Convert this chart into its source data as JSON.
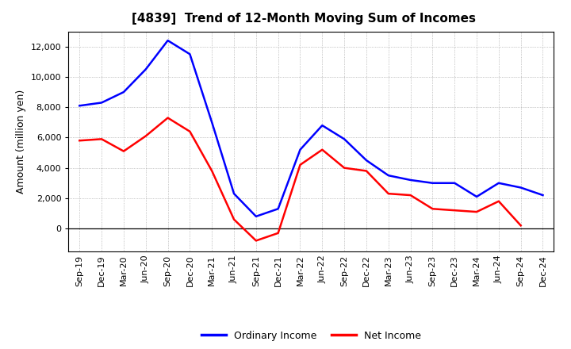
{
  "title": "[4839]  Trend of 12-Month Moving Sum of Incomes",
  "ylabel": "Amount (million yen)",
  "x_labels": [
    "Sep-19",
    "Dec-19",
    "Mar-20",
    "Jun-20",
    "Sep-20",
    "Dec-20",
    "Mar-21",
    "Jun-21",
    "Sep-21",
    "Dec-21",
    "Mar-22",
    "Jun-22",
    "Sep-22",
    "Dec-22",
    "Mar-23",
    "Jun-23",
    "Sep-23",
    "Dec-23",
    "Mar-24",
    "Jun-24",
    "Sep-24",
    "Dec-24"
  ],
  "ordinary_income": [
    8100,
    8300,
    9000,
    10500,
    12400,
    11500,
    7000,
    2300,
    800,
    1300,
    5200,
    6800,
    5900,
    4500,
    3500,
    3200,
    3000,
    3000,
    2100,
    3000,
    2700,
    2200
  ],
  "net_income": [
    5800,
    5900,
    5100,
    6100,
    7300,
    6400,
    3800,
    600,
    -800,
    -300,
    4200,
    5200,
    4000,
    3800,
    2300,
    2200,
    1300,
    1200,
    1100,
    1800,
    200,
    null
  ],
  "ordinary_color": "#0000ff",
  "net_color": "#ff0000",
  "background_color": "#ffffff",
  "plot_bg_color": "#ffffff",
  "grid_color": "#999999",
  "ylim": [
    -1500,
    13000
  ],
  "yticks": [
    0,
    2000,
    4000,
    6000,
    8000,
    10000,
    12000
  ],
  "legend_labels": [
    "Ordinary Income",
    "Net Income"
  ],
  "title_fontsize": 11,
  "ylabel_fontsize": 9,
  "tick_fontsize": 8
}
